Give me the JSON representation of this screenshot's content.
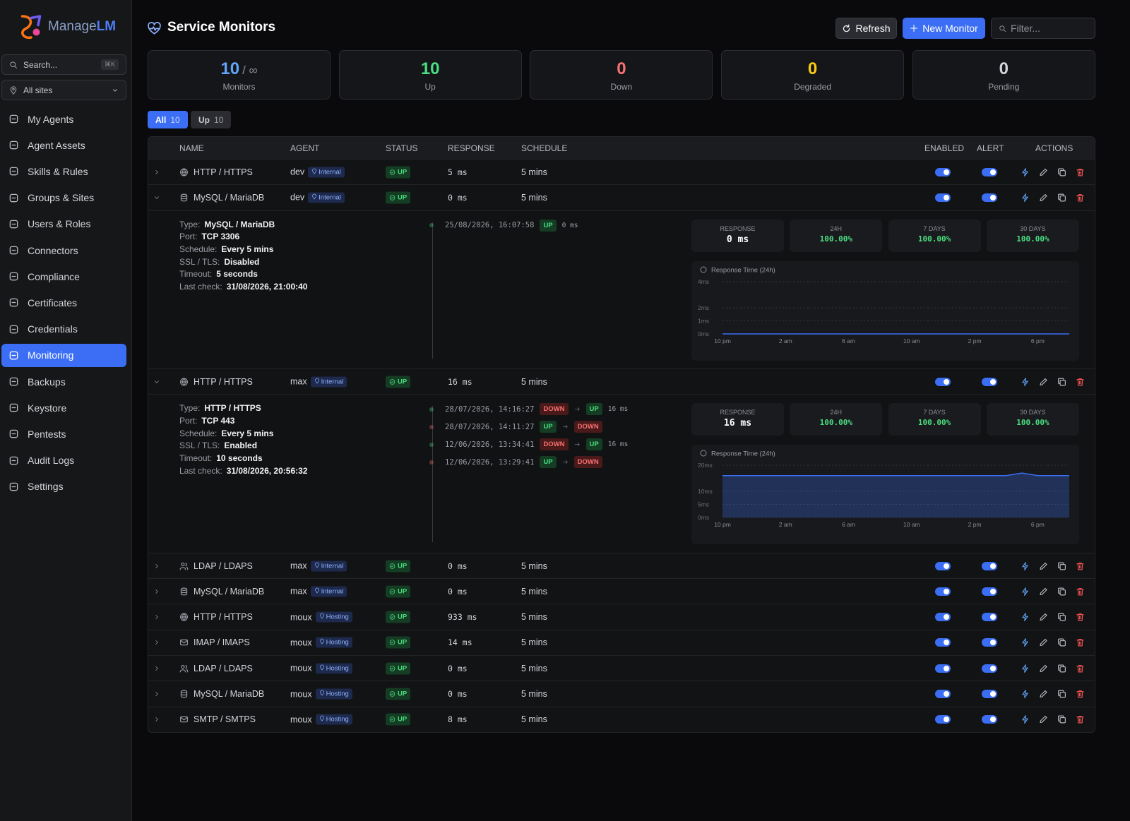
{
  "sidebar": {
    "logo_main": "Manage",
    "logo_accent": "LM",
    "search_placeholder": "Search...",
    "search_shortcut": "⌘K",
    "site": "All sites",
    "nav": [
      "My Agents",
      "Agent Assets",
      "Skills & Rules",
      "Groups & Sites",
      "Users & Roles",
      "Connectors",
      "Compliance",
      "Certificates",
      "Credentials",
      "Monitoring",
      "Backups",
      "Keystore",
      "Pentests",
      "Audit Logs",
      "Settings"
    ],
    "active": 9
  },
  "header": {
    "title": "Service Monitors",
    "refresh": "Refresh",
    "new_monitor": "New Monitor",
    "filter_placeholder": "Filter..."
  },
  "stats": [
    {
      "value": 10,
      "suffix": "/ ∞",
      "label": "Monitors",
      "color": "#60a5fa"
    },
    {
      "value": 10,
      "label": "Up",
      "color": "#4ade80"
    },
    {
      "value": 0,
      "label": "Down",
      "color": "#f87171"
    },
    {
      "value": 0,
      "label": "Degraded",
      "color": "#facc15"
    },
    {
      "value": 0,
      "label": "Pending",
      "color": "#d1d5db"
    }
  ],
  "tabs": [
    {
      "label": "All",
      "count": 10,
      "active": true
    },
    {
      "label": "Up",
      "count": 10,
      "active": false
    }
  ],
  "columns": [
    "NAME",
    "AGENT",
    "STATUS",
    "RESPONSE",
    "SCHEDULE",
    "ENABLED",
    "ALERT",
    "ACTIONS"
  ],
  "status_colors": {
    "UP": {
      "fg": "#4ade80",
      "bg": "#143d24"
    },
    "DOWN": {
      "fg": "#f87171",
      "bg": "#4a1a1a"
    }
  },
  "rows": [
    {
      "name": "HTTP / HTTPS",
      "agent": "dev",
      "tag": "Internal",
      "status": "UP",
      "response": "5 ms",
      "schedule": "5 mins",
      "enabled": true,
      "alert": true
    },
    {
      "name": "MySQL / MariaDB",
      "agent": "dev",
      "tag": "Internal",
      "status": "UP",
      "response": "0 ms",
      "schedule": "5 mins",
      "enabled": true,
      "alert": true,
      "details": {
        "fields": [
          {
            "label": "Type:",
            "value": "MySQL / MariaDB"
          },
          {
            "label": "Port:",
            "value": "TCP 3306"
          },
          {
            "label": "Schedule:",
            "value": "Every 5 mins"
          },
          {
            "label": "SSL / TLS:",
            "value": "Disabled"
          },
          {
            "label": "Timeout:",
            "value": "5 seconds"
          },
          {
            "label": "Last check:",
            "value": "31/08/2026, 21:00:40"
          }
        ],
        "events": [
          {
            "time": "25/08/2026, 16:07:58",
            "to": "UP",
            "response": "0 ms"
          }
        ],
        "metrics": [
          {
            "label": "RESPONSE",
            "value": "0 ms"
          },
          {
            "label": "24H",
            "value": "100.00%"
          },
          {
            "label": "7 DAYS",
            "value": "100.00%"
          },
          {
            "label": "30 DAYS",
            "value": "100.00%"
          }
        ],
        "chart": {
          "type": "line",
          "title": "Response Time (24h)",
          "color": "#3b6ef5",
          "area": false,
          "xlim": [
            0,
            22
          ],
          "ylim": [
            0,
            4
          ],
          "xticks": [
            {
              "value": 0,
              "label": "10 pm"
            },
            {
              "value": 4,
              "label": "2 am"
            },
            {
              "value": 8,
              "label": "6 am"
            },
            {
              "value": 12,
              "label": "10 am"
            },
            {
              "value": 16,
              "label": "2 pm"
            },
            {
              "value": 20,
              "label": "6 pm"
            }
          ],
          "yticks": [
            {
              "value": 0,
              "label": "0ms"
            },
            {
              "value": 1,
              "label": "1ms"
            },
            {
              "value": 2,
              "label": "2ms"
            },
            {
              "value": 4,
              "label": "4ms"
            }
          ],
          "x": [
            0,
            4,
            8,
            12,
            16,
            20,
            22
          ],
          "values": [
            0,
            0,
            0,
            0,
            0,
            0,
            0
          ]
        }
      }
    },
    {
      "name": "HTTP / HTTPS",
      "agent": "max",
      "tag": "Internal",
      "status": "UP",
      "response": "16 ms",
      "schedule": "5 mins",
      "enabled": true,
      "alert": true,
      "details": {
        "fields": [
          {
            "label": "Type:",
            "value": "HTTP / HTTPS"
          },
          {
            "label": "Port:",
            "value": "TCP 443"
          },
          {
            "label": "Schedule:",
            "value": "Every 5 mins"
          },
          {
            "label": "SSL / TLS:",
            "value": "Enabled"
          },
          {
            "label": "Timeout:",
            "value": "10 seconds"
          },
          {
            "label": "Last check:",
            "value": "31/08/2026, 20:56:32"
          }
        ],
        "events": [
          {
            "time": "28/07/2026, 14:16:27",
            "from": "DOWN",
            "to": "UP",
            "response": "16 ms"
          },
          {
            "time": "28/07/2026, 14:11:27",
            "from": "UP",
            "to": "DOWN"
          },
          {
            "time": "12/06/2026, 13:34:41",
            "from": "DOWN",
            "to": "UP",
            "response": "16 ms"
          },
          {
            "time": "12/06/2026, 13:29:41",
            "from": "UP",
            "to": "DOWN"
          }
        ],
        "metrics": [
          {
            "label": "RESPONSE",
            "value": "16 ms"
          },
          {
            "label": "24H",
            "value": "100.00%"
          },
          {
            "label": "7 DAYS",
            "value": "100.00%"
          },
          {
            "label": "30 DAYS",
            "value": "100.00%"
          }
        ],
        "chart": {
          "type": "line",
          "title": "Response Time (24h)",
          "color": "#3b6ef5",
          "area": true,
          "xlim": [
            0,
            22
          ],
          "ylim": [
            0,
            20
          ],
          "xticks": [
            {
              "value": 0,
              "label": "10 pm"
            },
            {
              "value": 4,
              "label": "2 am"
            },
            {
              "value": 8,
              "label": "6 am"
            },
            {
              "value": 12,
              "label": "10 am"
            },
            {
              "value": 16,
              "label": "2 pm"
            },
            {
              "value": 20,
              "label": "6 pm"
            }
          ],
          "yticks": [
            {
              "value": 0,
              "label": "0ms"
            },
            {
              "value": 5,
              "label": "5ms"
            },
            {
              "value": 10,
              "label": "10ms"
            },
            {
              "value": 20,
              "label": "20ms"
            }
          ],
          "x": [
            0,
            2,
            4,
            6,
            8,
            10,
            12,
            14,
            16,
            18,
            19,
            20,
            22
          ],
          "values": [
            16,
            16,
            16,
            16,
            16,
            16,
            16,
            16,
            16,
            16,
            17,
            16,
            16
          ]
        }
      }
    },
    {
      "name": "LDAP / LDAPS",
      "agent": "max",
      "tag": "Internal",
      "status": "UP",
      "response": "0 ms",
      "schedule": "5 mins",
      "enabled": true,
      "alert": true
    },
    {
      "name": "MySQL / MariaDB",
      "agent": "max",
      "tag": "Internal",
      "status": "UP",
      "response": "0 ms",
      "schedule": "5 mins",
      "enabled": true,
      "alert": true
    },
    {
      "name": "HTTP / HTTPS",
      "agent": "moux",
      "tag": "Hosting",
      "status": "UP",
      "response": "933 ms",
      "schedule": "5 mins",
      "enabled": true,
      "alert": true
    },
    {
      "name": "IMAP / IMAPS",
      "agent": "moux",
      "tag": "Hosting",
      "status": "UP",
      "response": "14 ms",
      "schedule": "5 mins",
      "enabled": true,
      "alert": true
    },
    {
      "name": "LDAP / LDAPS",
      "agent": "moux",
      "tag": "Hosting",
      "status": "UP",
      "response": "0 ms",
      "schedule": "5 mins",
      "enabled": true,
      "alert": true
    },
    {
      "name": "MySQL / MariaDB",
      "agent": "moux",
      "tag": "Hosting",
      "status": "UP",
      "response": "0 ms",
      "schedule": "5 mins",
      "enabled": true,
      "alert": true
    },
    {
      "name": "SMTP / SMTPS",
      "agent": "moux",
      "tag": "Hosting",
      "status": "UP",
      "response": "8 ms",
      "schedule": "5 mins",
      "enabled": true,
      "alert": true
    }
  ]
}
